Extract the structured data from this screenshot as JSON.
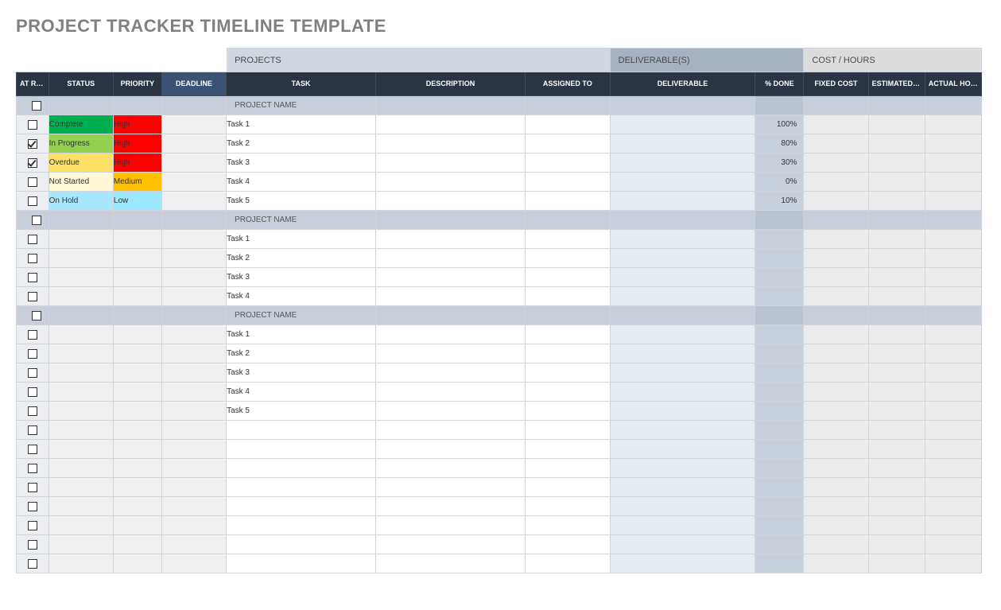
{
  "title": "PROJECT TRACKER TIMELINE TEMPLATE",
  "super_headers": {
    "projects": "PROJECTS",
    "deliverables": "DELIVERABLE(S)",
    "cost": "COST / HOURS"
  },
  "columns": {
    "at_risk": "AT RISK",
    "status": "STATUS",
    "priority": "PRIORITY",
    "deadline": "DEADLINE",
    "task": "TASK",
    "description": "DESCRIPTION",
    "assigned_to": "ASSIGNED TO",
    "deliverable": "DELIVERABLE",
    "pct_done": "% DONE",
    "fixed_cost": "FIXED COST",
    "est_hours": "ESTIMATED HOURS",
    "act_hours": "ACTUAL HOURS"
  },
  "status_colors": {
    "Complete": "#00b050",
    "In Progress": "#92d050",
    "Overdue": "#ffe066",
    "Not Started": "#fff7d6",
    "On Hold": "#a8e8ff"
  },
  "priority_colors": {
    "High": "#ff0000",
    "Medium": "#ffc000",
    "Low": "#9be8ff"
  },
  "group_label": "PROJECT NAME",
  "rows": [
    {
      "type": "group"
    },
    {
      "type": "task",
      "at_risk": false,
      "status": "Complete",
      "priority": "High",
      "task": "Task 1",
      "pct_done": "100%"
    },
    {
      "type": "task",
      "at_risk": true,
      "status": "In Progress",
      "priority": "High",
      "task": "Task 2",
      "pct_done": "80%"
    },
    {
      "type": "task",
      "at_risk": true,
      "status": "Overdue",
      "priority": "High",
      "task": "Task 3",
      "pct_done": "30%"
    },
    {
      "type": "task",
      "at_risk": false,
      "status": "Not Started",
      "priority": "Medium",
      "task": "Task 4",
      "pct_done": "0%"
    },
    {
      "type": "task",
      "at_risk": false,
      "status": "On Hold",
      "priority": "Low",
      "task": "Task 5",
      "pct_done": "10%"
    },
    {
      "type": "group"
    },
    {
      "type": "task",
      "at_risk": false,
      "task": "Task 1"
    },
    {
      "type": "task",
      "at_risk": false,
      "task": "Task 2"
    },
    {
      "type": "task",
      "at_risk": false,
      "task": "Task 3"
    },
    {
      "type": "task",
      "at_risk": false,
      "task": "Task 4"
    },
    {
      "type": "group"
    },
    {
      "type": "task",
      "at_risk": false,
      "task": "Task 1"
    },
    {
      "type": "task",
      "at_risk": false,
      "task": "Task 2"
    },
    {
      "type": "task",
      "at_risk": false,
      "task": "Task 3"
    },
    {
      "type": "task",
      "at_risk": false,
      "task": "Task 4"
    },
    {
      "type": "task",
      "at_risk": false,
      "task": "Task 5"
    },
    {
      "type": "task",
      "at_risk": false
    },
    {
      "type": "task",
      "at_risk": false
    },
    {
      "type": "task",
      "at_risk": false
    },
    {
      "type": "task",
      "at_risk": false
    },
    {
      "type": "task",
      "at_risk": false
    },
    {
      "type": "task",
      "at_risk": false
    },
    {
      "type": "task",
      "at_risk": false
    },
    {
      "type": "task",
      "at_risk": false
    }
  ],
  "styling": {
    "title_color": "#808080",
    "title_fontsize": 22,
    "header_bg": "#2b3442",
    "header_bg_blue": "#3a5273",
    "header_text": "#ffffff",
    "super_projects_bg": "#d0d7e1",
    "super_deliv_bg": "#a6b2c2",
    "super_cost_bg": "#dcdcdc",
    "group_row_bg": "#c8cfda",
    "risk_cell_bg": "#eceef2",
    "grey_cell_bg": "#f0f0f0",
    "deliv_cell_bg": "#e7ecf2",
    "done_cell_bg": "#c8d0dc",
    "cost_cell_bg": "#ececec",
    "border_color": "#d0d4db",
    "body_font": "Arial",
    "cell_fontsize": 10,
    "header_fontsize": 9
  }
}
